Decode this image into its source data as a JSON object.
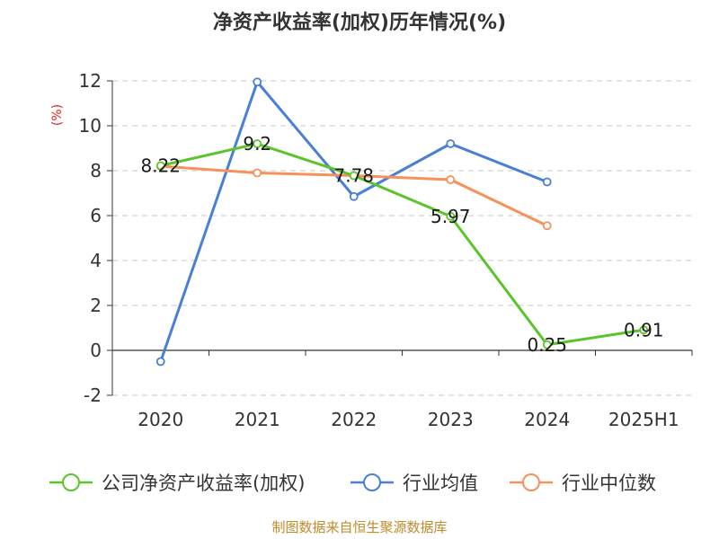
{
  "chart_data": {
    "type": "line",
    "title": "净资产收益率(加权)历年情况(%)",
    "ylabel": "(%)",
    "xlabel": "",
    "categories": [
      "2020",
      "2021",
      "2022",
      "2023",
      "2024",
      "2025H1"
    ],
    "ylim": [
      -2,
      12
    ],
    "yticks": [
      -2,
      0,
      2,
      4,
      6,
      8,
      10,
      12
    ],
    "grid": true,
    "legend_position": "bottom",
    "series": [
      {
        "name": "公司净资产收益率(加权)",
        "color": "#5bc42a",
        "values": [
          8.22,
          9.2,
          7.78,
          5.97,
          0.25,
          0.91
        ],
        "data_labels": [
          "8.22",
          "9.2",
          "7.78",
          "5.97",
          "0.25",
          "0.91"
        ]
      },
      {
        "name": "行业均值",
        "color": "#4a7fd6",
        "values": [
          -0.5,
          11.95,
          6.85,
          9.2,
          7.5,
          null
        ]
      },
      {
        "name": "行业中位数",
        "color": "#f5915a",
        "values": [
          8.2,
          7.9,
          7.78,
          7.6,
          5.55,
          null
        ]
      }
    ]
  },
  "footer": {
    "source": "制图数据来自恒生聚源数据库"
  }
}
